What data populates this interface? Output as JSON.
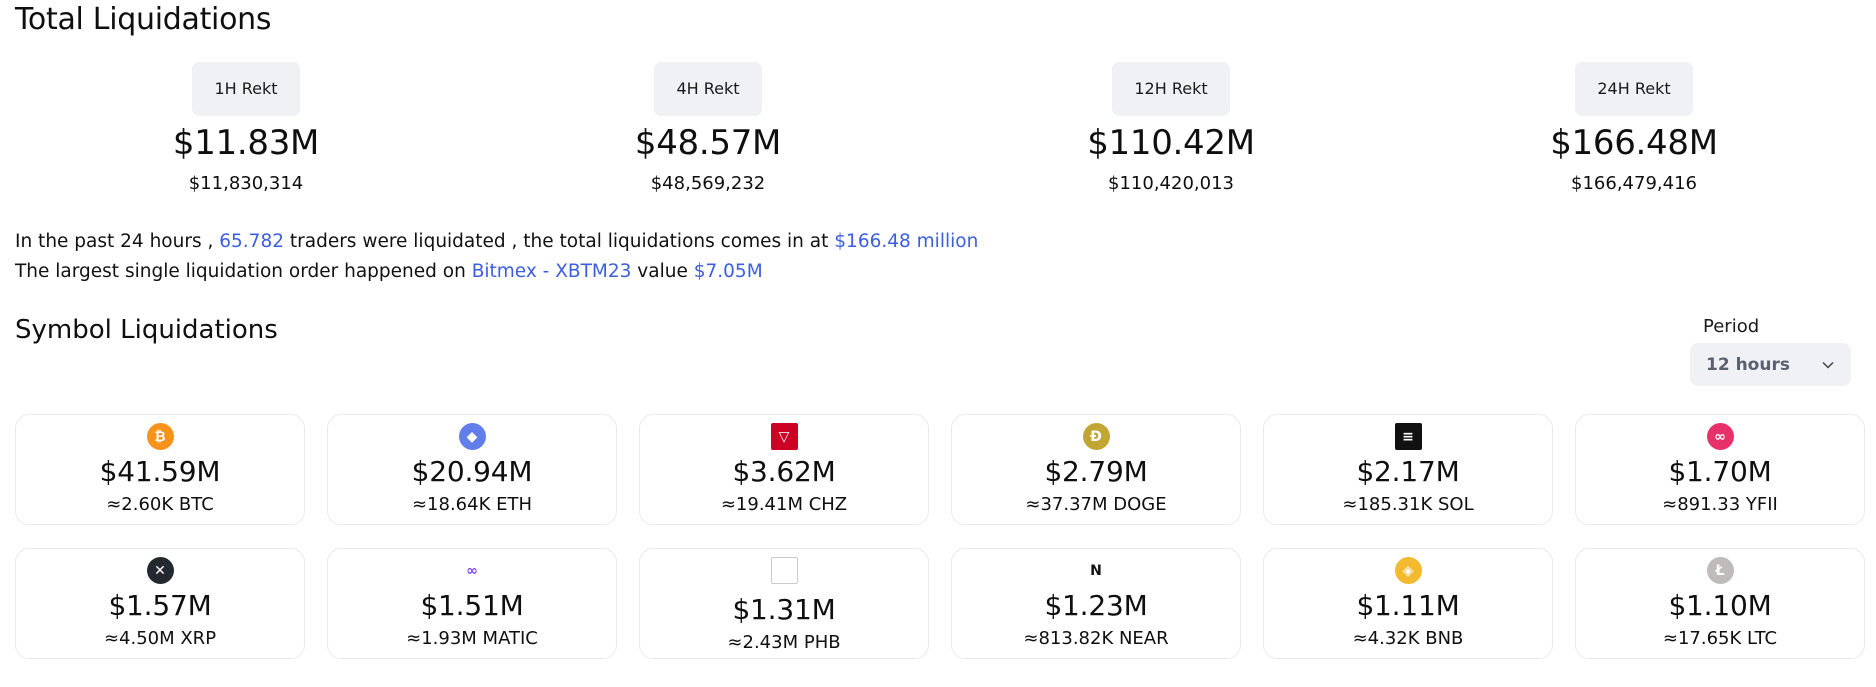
{
  "page_title": "Total Liquidations",
  "totals": [
    {
      "label": "1H Rekt",
      "value": "$11.83M",
      "exact": "$11,830,314"
    },
    {
      "label": "4H Rekt",
      "value": "$48.57M",
      "exact": "$48,569,232"
    },
    {
      "label": "12H Rekt",
      "value": "$110.42M",
      "exact": "$110,420,013"
    },
    {
      "label": "24H Rekt",
      "value": "$166.48M",
      "exact": "$166,479,416"
    }
  ],
  "summary": {
    "line1_prefix": "In the past 24 hours ,",
    "traders_count": "65.782",
    "line1_middle": "traders were liquidated , the total liquidations comes in at",
    "total_amount": "$166.48 million",
    "line2_prefix": "The largest single liquidation order happened on",
    "largest_order": "Bitmex - XBTM23",
    "line2_middle": "value",
    "largest_value": "$7.05M"
  },
  "symbols_section": {
    "title": "Symbol Liquidations",
    "period_label": "Period",
    "period_value": "12 hours"
  },
  "symbols": [
    {
      "icon": "bitcoin-icon",
      "glyph": "₿",
      "color": "#f7931a",
      "value": "$41.59M",
      "amount": "≈2.60K BTC"
    },
    {
      "icon": "ethereum-icon",
      "glyph": "◆",
      "color": "#627eea",
      "value": "$20.94M",
      "amount": "≈18.64K ETH"
    },
    {
      "icon": "chiliz-icon",
      "glyph": "▽",
      "color": "#cd0124",
      "value": "$3.62M",
      "amount": "≈19.41M CHZ"
    },
    {
      "icon": "dogecoin-icon",
      "glyph": "Ð",
      "color": "#c2a633",
      "value": "$2.79M",
      "amount": "≈37.37M DOGE"
    },
    {
      "icon": "solana-icon",
      "glyph": "≡",
      "color": "#111111",
      "value": "$2.17M",
      "amount": "≈185.31K SOL"
    },
    {
      "icon": "yfii-icon",
      "glyph": "∞",
      "color": "#e8316b",
      "value": "$1.70M",
      "amount": "≈891.33 YFII"
    },
    {
      "icon": "xrp-icon",
      "glyph": "✕",
      "color": "#23292f",
      "value": "$1.57M",
      "amount": "≈4.50M XRP"
    },
    {
      "icon": "polygon-icon",
      "glyph": "∞",
      "color": "#8247e5",
      "value": "$1.51M",
      "amount": "≈1.93M MATIC"
    },
    {
      "icon": "broken-image-icon",
      "glyph": "",
      "color": "#ffffff",
      "value": "$1.31M",
      "amount": "≈2.43M PHB"
    },
    {
      "icon": "near-icon",
      "glyph": "N",
      "color": "#111111",
      "value": "$1.23M",
      "amount": "≈813.82K NEAR"
    },
    {
      "icon": "bnb-icon",
      "glyph": "◈",
      "color": "#f3ba2f",
      "value": "$1.11M",
      "amount": "≈4.32K BNB"
    },
    {
      "icon": "litecoin-icon",
      "glyph": "Ł",
      "color": "#bfbbbb",
      "value": "$1.10M",
      "amount": "≈17.65K LTC"
    }
  ]
}
